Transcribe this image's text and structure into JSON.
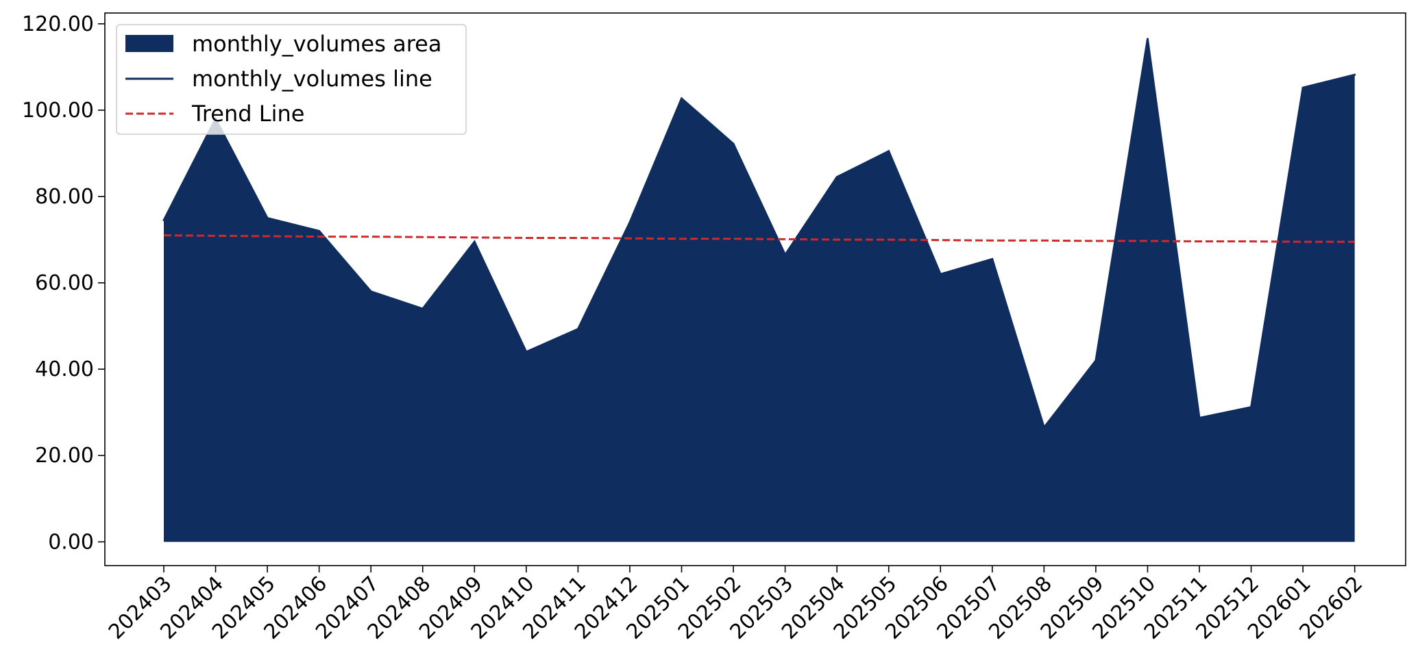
{
  "chart_data": {
    "type": "area",
    "title": "",
    "xlabel": "",
    "ylabel": "",
    "categories": [
      "202403",
      "202404",
      "202405",
      "202406",
      "202407",
      "202408",
      "202409",
      "202410",
      "202411",
      "202412",
      "202501",
      "202502",
      "202503",
      "202504",
      "202505",
      "202506",
      "202507",
      "202508",
      "202509",
      "202510",
      "202511",
      "202512",
      "202601",
      "202602"
    ],
    "series": [
      {
        "name": "monthly_volumes area",
        "kind": "area",
        "color": "#0f2d5e",
        "values": [
          74.5,
          98.0,
          75.0,
          72.0,
          58.0,
          54.0,
          69.5,
          44.0,
          49.3,
          74.0,
          102.7,
          92.2,
          66.5,
          84.5,
          90.5,
          62.0,
          65.5,
          26.5,
          42.0,
          116.5,
          28.7,
          31.2,
          105.2,
          108.2
        ]
      },
      {
        "name": "monthly_volumes line",
        "kind": "line",
        "color": "#0f2d5e",
        "values": [
          74.5,
          98.0,
          75.0,
          72.0,
          58.0,
          54.0,
          69.5,
          44.0,
          49.3,
          74.0,
          102.7,
          92.2,
          66.5,
          84.5,
          90.5,
          62.0,
          65.5,
          26.5,
          42.0,
          116.5,
          28.7,
          31.2,
          105.2,
          108.2
        ]
      },
      {
        "name": "Trend Line",
        "kind": "dashed-line",
        "color": "#d62728",
        "values": [
          71.0,
          70.9,
          70.8,
          70.7,
          70.7,
          70.6,
          70.5,
          70.4,
          70.4,
          70.3,
          70.2,
          70.2,
          70.1,
          70.0,
          70.0,
          69.9,
          69.8,
          69.8,
          69.7,
          69.7,
          69.6,
          69.6,
          69.5,
          69.5
        ]
      }
    ],
    "ylim": [
      -5.5,
      122.5
    ],
    "yticks": [
      0,
      20,
      40,
      60,
      80,
      100,
      120
    ],
    "ytick_labels": [
      "0.00",
      "20.00",
      "40.00",
      "60.00",
      "80.00",
      "100.00",
      "120.00"
    ],
    "grid": false,
    "legend_position": "top-left"
  }
}
